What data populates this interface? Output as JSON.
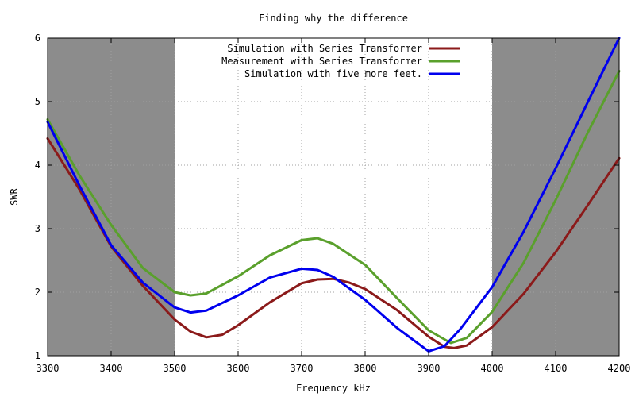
{
  "chart_data": {
    "type": "line",
    "title": "Finding why the difference",
    "xlabel": "Frequency kHz",
    "ylabel": "SWR",
    "xlim": [
      3300,
      4200
    ],
    "ylim": [
      1,
      6
    ],
    "x_ticks": [
      "3300",
      "3400",
      "3500",
      "3600",
      "3700",
      "3800",
      "3900",
      "4000",
      "4100",
      "4200"
    ],
    "y_ticks": [
      "1",
      "2",
      "3",
      "4",
      "5",
      "6"
    ],
    "grid": true,
    "grid_style": "dotted",
    "legend_position": "top-center",
    "shaded_regions": [
      {
        "x_start": 3300,
        "x_end": 3500,
        "color": "#8c8c8c"
      },
      {
        "x_start": 4000,
        "x_end": 4200,
        "color": "#8c8c8c"
      }
    ],
    "series": [
      {
        "name": "Simulation with Series Transformer",
        "color": "#8b1a1a",
        "x": [
          3300,
          3350,
          3400,
          3450,
          3500,
          3525,
          3550,
          3575,
          3600,
          3650,
          3700,
          3725,
          3750,
          3775,
          3800,
          3850,
          3900,
          3925,
          3940,
          3960,
          4000,
          4050,
          4100,
          4150,
          4200
        ],
        "y": [
          4.42,
          3.62,
          2.72,
          2.1,
          1.57,
          1.38,
          1.29,
          1.33,
          1.48,
          1.84,
          2.14,
          2.2,
          2.21,
          2.15,
          2.05,
          1.72,
          1.3,
          1.14,
          1.12,
          1.16,
          1.45,
          1.98,
          2.63,
          3.36,
          4.11
        ]
      },
      {
        "name": "Measurement with Series Transformer",
        "color": "#5aa02c",
        "x": [
          3300,
          3350,
          3400,
          3450,
          3500,
          3525,
          3550,
          3600,
          3650,
          3700,
          3725,
          3750,
          3800,
          3850,
          3900,
          3935,
          3960,
          4000,
          4050,
          4100,
          4150,
          4200
        ],
        "y": [
          4.72,
          3.84,
          3.06,
          2.38,
          2.0,
          1.95,
          1.98,
          2.25,
          2.58,
          2.82,
          2.85,
          2.76,
          2.43,
          1.91,
          1.4,
          1.2,
          1.28,
          1.69,
          2.47,
          3.45,
          4.5,
          5.48
        ]
      },
      {
        "name": "Simulation with five more feet.",
        "color": "#0000ee",
        "x": [
          3300,
          3350,
          3400,
          3450,
          3500,
          3525,
          3550,
          3600,
          3650,
          3700,
          3725,
          3750,
          3800,
          3850,
          3900,
          3925,
          3950,
          4000,
          4050,
          4100,
          4150,
          4200
        ],
        "y": [
          4.68,
          3.68,
          2.74,
          2.15,
          1.76,
          1.68,
          1.71,
          1.95,
          2.23,
          2.37,
          2.35,
          2.24,
          1.88,
          1.44,
          1.07,
          1.15,
          1.42,
          2.08,
          2.96,
          3.95,
          4.98,
          6.0
        ]
      }
    ]
  }
}
